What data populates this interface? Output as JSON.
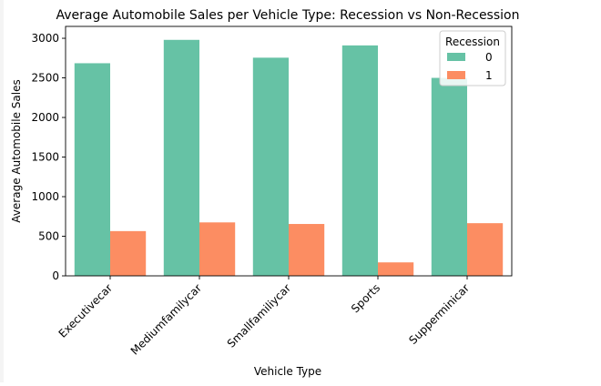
{
  "chart_data": {
    "type": "bar",
    "title": "Average Automobile Sales per Vehicle Type: Recession vs Non-Recession",
    "xlabel": "Vehicle Type",
    "ylabel": "Average Automobile Sales",
    "categories": [
      "Executivecar",
      "Mediumfamilycar",
      "Smallfamiliycar",
      "Sports",
      "Supperminicar"
    ],
    "series": [
      {
        "name": "0",
        "color": "#66c2a5",
        "values": [
          2685,
          2980,
          2755,
          2910,
          2500
        ]
      },
      {
        "name": "1",
        "color": "#fc8d62",
        "values": [
          565,
          675,
          655,
          170,
          665
        ]
      }
    ],
    "ylim": [
      0,
      3150
    ],
    "yticks": [
      0,
      500,
      1000,
      1500,
      2000,
      2500,
      3000
    ],
    "legend": {
      "title": "Recession",
      "placement": "top-right"
    },
    "grid": false
  }
}
